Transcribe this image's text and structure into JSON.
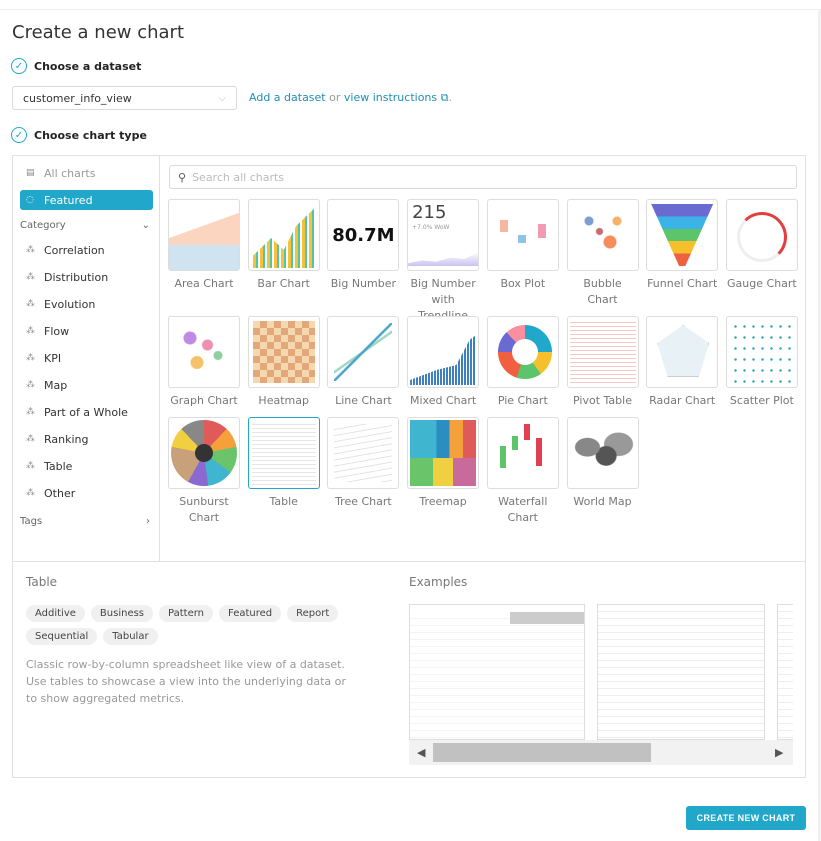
{
  "page_title": "Create a new chart",
  "steps": {
    "dataset": "Choose a dataset",
    "chart_type": "Choose chart type"
  },
  "dataset_select": {
    "value": "customer_info_view"
  },
  "links": {
    "add_dataset": "Add a dataset",
    "or": "or",
    "view_instructions": "view instructions",
    "period": "."
  },
  "sidebar": {
    "all_charts": "All charts",
    "featured": "Featured",
    "category_header": "Category",
    "tags_header": "Tags",
    "categories": [
      "Correlation",
      "Distribution",
      "Evolution",
      "Flow",
      "KPI",
      "Map",
      "Part of a Whole",
      "Ranking",
      "Table",
      "Other"
    ]
  },
  "search": {
    "placeholder": "Search all charts"
  },
  "charts": [
    {
      "name": "Area Chart",
      "thumb": "area"
    },
    {
      "name": "Bar Chart",
      "thumb": "bar"
    },
    {
      "name": "Big Number",
      "thumb": "bignum",
      "text": "80.7M"
    },
    {
      "name": "Big Number with Trendline",
      "thumb": "trend",
      "text": "215",
      "sub": "+7.0% WoW"
    },
    {
      "name": "Box Plot",
      "thumb": "box"
    },
    {
      "name": "Bubble Chart",
      "thumb": "bubble"
    },
    {
      "name": "Funnel Chart",
      "thumb": "funnel"
    },
    {
      "name": "Gauge Chart",
      "thumb": "gauge"
    },
    {
      "name": "Graph Chart",
      "thumb": "graph"
    },
    {
      "name": "Heatmap",
      "thumb": "heat"
    },
    {
      "name": "Line Chart",
      "thumb": "line"
    },
    {
      "name": "Mixed Chart",
      "thumb": "mixed"
    },
    {
      "name": "Pie Chart",
      "thumb": "pie"
    },
    {
      "name": "Pivot Table",
      "thumb": "pivot"
    },
    {
      "name": "Radar Chart",
      "thumb": "radar"
    },
    {
      "name": "Scatter Plot",
      "thumb": "scatter"
    },
    {
      "name": "Sunburst Chart",
      "thumb": "sunburst"
    },
    {
      "name": "Table",
      "thumb": "table",
      "selected": true
    },
    {
      "name": "Tree Chart",
      "thumb": "tree"
    },
    {
      "name": "Treemap",
      "thumb": "treemap"
    },
    {
      "name": "Waterfall Chart",
      "thumb": "waterfall"
    },
    {
      "name": "World Map",
      "thumb": "world"
    }
  ],
  "details": {
    "title": "Table",
    "tags": [
      "Additive",
      "Business",
      "Pattern",
      "Featured",
      "Report",
      "Sequential",
      "Tabular"
    ],
    "description": "Classic row-by-column spreadsheet like view of a dataset. Use tables to showcase a view into the underlying data or to show aggregated metrics.",
    "examples_title": "Examples"
  },
  "create_button": "CREATE NEW CHART",
  "colors": {
    "accent": "#20a7c9",
    "link": "#1f8eb5"
  }
}
